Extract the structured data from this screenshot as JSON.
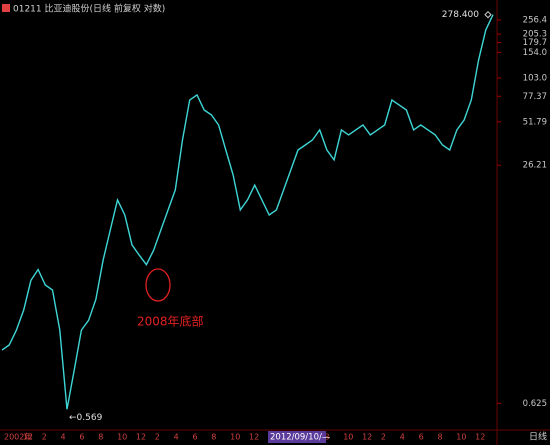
{
  "chart_data": {
    "type": "line",
    "title": "01211 比亚迪股份(日线 前复权 对数)",
    "log_scale": true,
    "color": "#3ed6d6",
    "values": [
      1.44,
      1.56,
      1.97,
      2.7,
      4.3,
      5.1,
      4.0,
      3.7,
      1.97,
      0.569,
      1.05,
      1.97,
      2.3,
      3.2,
      5.9,
      9.5,
      15.2,
      12.0,
      7.5,
      6.4,
      5.5,
      6.9,
      9.5,
      13.0,
      17.8,
      39.0,
      73.0,
      79.0,
      62.4,
      57.7,
      49.3,
      33.3,
      22.5,
      13.0,
      15.2,
      19.2,
      15.2,
      12.0,
      13.0,
      17.8,
      24.3,
      33.3,
      36.0,
      39.0,
      45.6,
      33.3,
      28.5,
      45.6,
      42.2,
      45.6,
      49.3,
      42.2,
      45.6,
      49.3,
      73.0,
      67.5,
      62.4,
      45.6,
      49.3,
      45.6,
      42.2,
      36.0,
      33.3,
      45.6,
      53.3,
      73.0,
      136.8,
      219.1,
      278.4
    ],
    "ylim": [
      0.52,
      324
    ],
    "yticks": [
      256.4,
      205.3,
      179.7,
      {
        "value": 154,
        "label": "154.0"
      },
      {
        "value": 103,
        "label": "103.0"
      },
      77.37,
      51.79,
      26.21,
      0.625
    ],
    "x_axis_labels": [
      "2002年",
      "12",
      "2",
      "4",
      "6",
      "8",
      "10",
      "12",
      "2",
      "4",
      "6",
      "8",
      "10",
      "12",
      "2",
      "4",
      "6",
      "8",
      "10",
      "12",
      "2",
      "4",
      "6",
      "8",
      "10",
      "12"
    ],
    "cursor_date": "2012/09/10/—",
    "period": "日线",
    "annotations": [
      {
        "value": 278.4,
        "label": "278.400"
      },
      {
        "value": 0.569,
        "label": "←0.569"
      }
    ],
    "note": "2008年底部"
  }
}
